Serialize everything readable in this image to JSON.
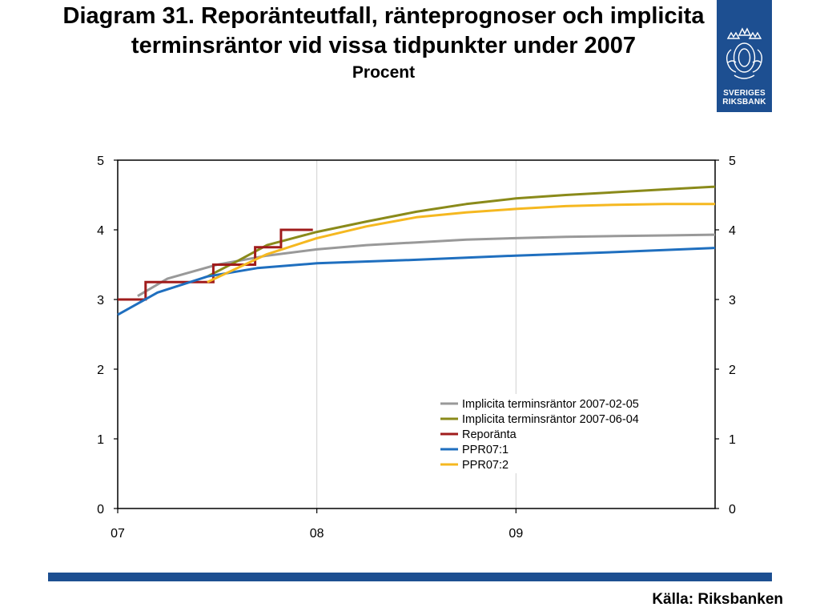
{
  "header": {
    "title": "Diagram 31. Reporänteutfall, ränteprognoser och implicita terminsräntor vid vissa tidpunkter under 2007",
    "subtitle": "Procent"
  },
  "logo": {
    "line1": "SVERIGES",
    "line2": "RIKSBANK",
    "color": "#1d4f91"
  },
  "footer": {
    "source": "Källa: Riksbanken",
    "bar_color": "#1d4f91"
  },
  "chart_data": {
    "type": "line",
    "title": "",
    "xlabel": "",
    "ylabel": "",
    "x_ticks": [
      {
        "label": "07",
        "value": 2007
      },
      {
        "label": "08",
        "value": 2008
      },
      {
        "label": "09",
        "value": 2009
      }
    ],
    "xlim": [
      2007,
      2010
    ],
    "ylim": [
      0,
      5
    ],
    "y_ticks": [
      0,
      1,
      2,
      3,
      4,
      5
    ],
    "y_axis_right": true,
    "grid": "vertical",
    "legend_position": "lower-right",
    "series": [
      {
        "name": "Implicita terminsräntor 2007-02-05",
        "color": "#999999",
        "points": [
          [
            2007.1,
            3.05
          ],
          [
            2007.25,
            3.3
          ],
          [
            2007.5,
            3.5
          ],
          [
            2007.75,
            3.63
          ],
          [
            2008.0,
            3.72
          ],
          [
            2008.25,
            3.78
          ],
          [
            2008.5,
            3.82
          ],
          [
            2008.75,
            3.86
          ],
          [
            2009.0,
            3.88
          ],
          [
            2009.25,
            3.9
          ],
          [
            2009.5,
            3.91
          ],
          [
            2009.75,
            3.92
          ],
          [
            2010.0,
            3.93
          ]
        ]
      },
      {
        "name": "Implicita terminsräntor 2007-06-04",
        "color": "#8a8a1a",
        "points": [
          [
            2007.45,
            3.33
          ],
          [
            2007.6,
            3.55
          ],
          [
            2007.75,
            3.78
          ],
          [
            2008.0,
            3.97
          ],
          [
            2008.25,
            4.12
          ],
          [
            2008.5,
            4.26
          ],
          [
            2008.75,
            4.37
          ],
          [
            2009.0,
            4.45
          ],
          [
            2009.25,
            4.5
          ],
          [
            2009.5,
            4.54
          ],
          [
            2009.75,
            4.58
          ],
          [
            2010.0,
            4.62
          ]
        ]
      },
      {
        "name": "Reporänta",
        "color": "#a01c1c",
        "step": true,
        "points": [
          [
            2007.0,
            3.0
          ],
          [
            2007.14,
            3.0
          ],
          [
            2007.14,
            3.25
          ],
          [
            2007.48,
            3.25
          ],
          [
            2007.48,
            3.5
          ],
          [
            2007.69,
            3.5
          ],
          [
            2007.69,
            3.75
          ],
          [
            2007.82,
            3.75
          ],
          [
            2007.82,
            4.0
          ],
          [
            2007.98,
            4.0
          ]
        ]
      },
      {
        "name": "PPR07:1",
        "color": "#1f6fbf",
        "points": [
          [
            2007.0,
            2.78
          ],
          [
            2007.2,
            3.1
          ],
          [
            2007.45,
            3.33
          ],
          [
            2007.7,
            3.45
          ],
          [
            2008.0,
            3.52
          ],
          [
            2008.5,
            3.57
          ],
          [
            2009.0,
            3.63
          ],
          [
            2009.5,
            3.68
          ],
          [
            2010.0,
            3.74
          ]
        ]
      },
      {
        "name": "PPR07:2",
        "color": "#f5b820",
        "points": [
          [
            2007.45,
            3.25
          ],
          [
            2007.75,
            3.65
          ],
          [
            2008.0,
            3.88
          ],
          [
            2008.25,
            4.05
          ],
          [
            2008.5,
            4.18
          ],
          [
            2008.75,
            4.25
          ],
          [
            2009.0,
            4.3
          ],
          [
            2009.25,
            4.34
          ],
          [
            2009.5,
            4.36
          ],
          [
            2009.75,
            4.37
          ],
          [
            2010.0,
            4.37
          ]
        ]
      }
    ]
  }
}
